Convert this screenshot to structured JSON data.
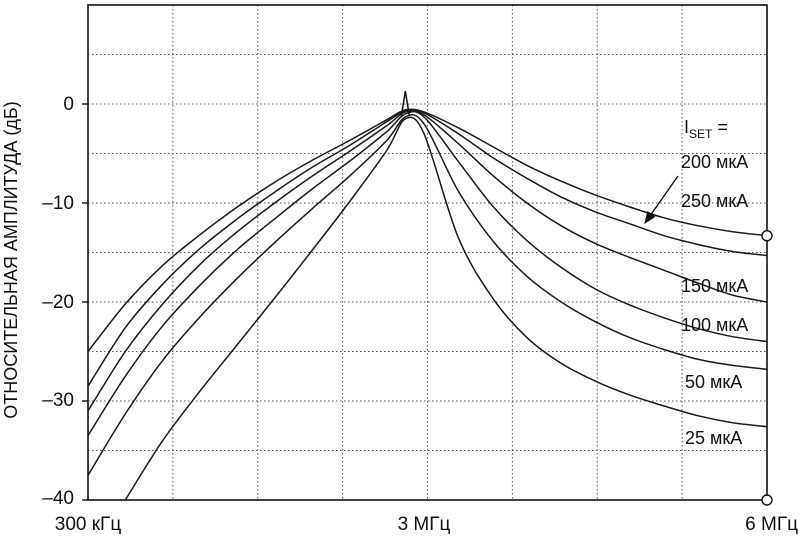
{
  "chart_data": {
    "type": "line",
    "title": "",
    "xlabel": "",
    "ylabel": "ОТНОСИТЕЛЬНАЯ АМПЛИТУДА (дБ)",
    "x_tick_labels": [
      "300 кГц",
      "3 МГц",
      "6 МГц"
    ],
    "y_tick_labels": [
      "0",
      "–10",
      "–20",
      "–30",
      "–40"
    ],
    "y_ticks": [
      0,
      -10,
      -20,
      -30,
      -40
    ],
    "xlim_mhz": [
      0.3,
      6.0
    ],
    "ylim": [
      -40,
      10
    ],
    "grid": true,
    "legend_title": {
      "main": "I",
      "sub": "SET",
      "suffix": " ="
    },
    "series": [
      {
        "name": "200 мкА",
        "x": [
          0.3,
          0.6,
          0.9,
          1.2,
          1.5,
          1.8,
          2.1,
          2.4,
          2.7,
          2.85,
          3.0,
          3.3,
          3.6,
          3.9,
          4.2,
          4.5,
          4.8,
          5.1,
          5.4,
          5.7,
          6.0
        ],
        "y": [
          -25,
          -20.2,
          -16.3,
          -13.2,
          -10.4,
          -7.9,
          -5.7,
          -3.7,
          -1.6,
          -0.6,
          -0.8,
          -2.4,
          -4.3,
          -6.2,
          -7.8,
          -9.2,
          -10.4,
          -11.5,
          -12.3,
          -12.9,
          -13.3
        ]
      },
      {
        "name": "250 мкА",
        "x": [
          0.3,
          0.6,
          0.9,
          1.2,
          1.5,
          1.8,
          2.1,
          2.4,
          2.7,
          2.85,
          3.0,
          3.3,
          3.6,
          3.9,
          4.2,
          4.5,
          4.8,
          5.1,
          5.4,
          5.7,
          6.0
        ],
        "y": [
          -28.5,
          -22.6,
          -18.2,
          -14.6,
          -11.6,
          -8.9,
          -6.4,
          -4.2,
          -1.8,
          -0.7,
          -0.9,
          -3,
          -5.4,
          -7.5,
          -9.4,
          -10.9,
          -12.1,
          -13.3,
          -14.2,
          -14.9,
          -15.3
        ]
      },
      {
        "name": "150 мкА",
        "x": [
          0.3,
          0.6,
          0.9,
          1.2,
          1.5,
          1.8,
          2.1,
          2.4,
          2.7,
          2.85,
          3.0,
          3.3,
          3.6,
          3.9,
          4.2,
          4.5,
          4.8,
          5.1,
          5.4,
          5.7,
          6.0
        ],
        "y": [
          -31,
          -25,
          -20.2,
          -16.2,
          -12.9,
          -10,
          -7.3,
          -4.8,
          -2.2,
          -0.8,
          -1.1,
          -4,
          -7.2,
          -10,
          -12.3,
          -14.1,
          -15.5,
          -16.8,
          -18.1,
          -19.3,
          -20
        ]
      },
      {
        "name": "100 мкА",
        "x": [
          0.3,
          0.6,
          0.9,
          1.2,
          1.5,
          1.8,
          2.1,
          2.4,
          2.7,
          2.85,
          3.0,
          3.3,
          3.6,
          3.9,
          4.2,
          4.5,
          4.8,
          5.1,
          5.4,
          5.7,
          6.0
        ],
        "y": [
          -33.5,
          -27.5,
          -22.4,
          -18.3,
          -14.7,
          -11.6,
          -8.6,
          -5.8,
          -2.8,
          -1,
          -1.3,
          -5.8,
          -10.3,
          -13.8,
          -16.5,
          -18.7,
          -20.3,
          -21.6,
          -22.7,
          -23.5,
          -24
        ]
      },
      {
        "name": "50 мкА",
        "x": [
          0.3,
          0.6,
          0.9,
          1.2,
          1.5,
          1.8,
          2.1,
          2.4,
          2.7,
          2.85,
          3.0,
          3.3,
          3.6,
          3.9,
          4.2,
          4.5,
          4.8,
          5.1,
          5.4,
          5.7,
          6.0
        ],
        "y": [
          -37.5,
          -31.3,
          -25.9,
          -21.5,
          -17.6,
          -14,
          -10.6,
          -7.3,
          -3.7,
          -1.3,
          -2,
          -8.8,
          -13.8,
          -17.4,
          -20,
          -22,
          -23.6,
          -24.8,
          -25.8,
          -26.4,
          -26.8
        ]
      },
      {
        "name": "25 мкА",
        "x": [
          0.6,
          0.9,
          1.2,
          1.5,
          1.8,
          2.1,
          2.4,
          2.7,
          2.85,
          3.0,
          3.3,
          3.6,
          3.9,
          4.2,
          4.5,
          4.8,
          5.1,
          5.4,
          5.7,
          6.0
        ],
        "y": [
          -40,
          -34,
          -29,
          -24.3,
          -19.6,
          -14.8,
          -9.9,
          -4.7,
          -1.5,
          -3,
          -13.5,
          -19.6,
          -23.6,
          -26.2,
          -28,
          -29.4,
          -30.5,
          -31.5,
          -32.2,
          -32.6
        ]
      }
    ],
    "peak_mhz": 2.85,
    "legend_labels": [
      "200 мкА",
      "250 мкА",
      "150 мкА",
      "100 мкА",
      "50 мкА",
      "25 мкА"
    ],
    "annotations": {
      "arrow_to_series": "250 мкА",
      "endpoint_markers_y": [
        -13.3,
        -40
      ]
    }
  }
}
